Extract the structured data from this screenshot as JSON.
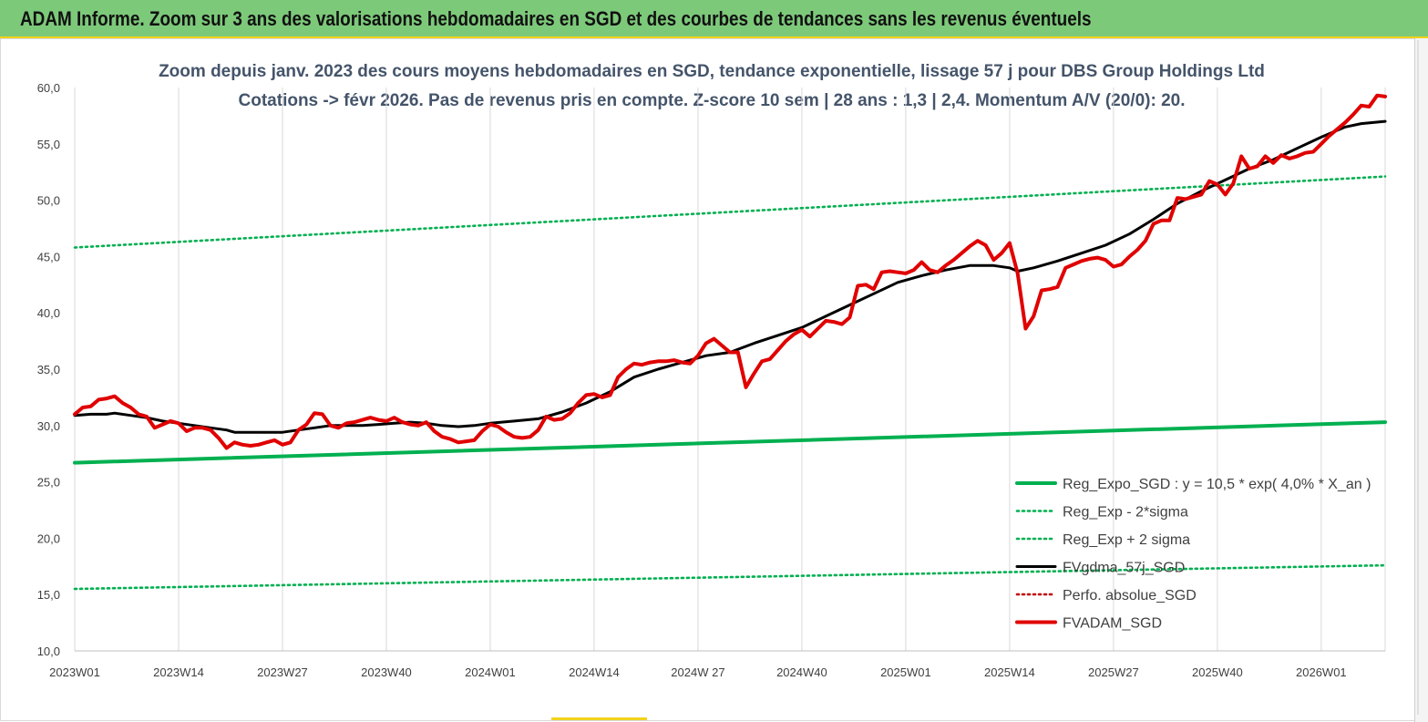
{
  "header": {
    "title": "ADAM Informe. Zoom sur 3 ans des valorisations hebdomadaires en SGD et des courbes de tendances sans les revenus éventuels",
    "background": "#7dc97a",
    "accent": "#f2d21b"
  },
  "chart_data": {
    "type": "line",
    "title": "Zoom depuis janv. 2023 des cours moyens hebdomadaires en SGD, tendance exponentielle, lissage 57 j pour DBS Group Holdings Ltd",
    "subtitle": "Cotations -> févr 2026.  Pas de revenus pris en compte. Z-score 10 sem  | 28 ans : 1,3  | 2,4. Momentum A/V (20/0): 20.",
    "xlabel": "",
    "ylabel": "",
    "ylim": [
      10,
      60
    ],
    "xlim": [
      0,
      164
    ],
    "y_ticks": [
      "10,0",
      "15,0",
      "20,0",
      "25,0",
      "30,0",
      "35,0",
      "40,0",
      "45,0",
      "50,0",
      "55,0",
      "60,0"
    ],
    "x_ticks": [
      {
        "label": "2023W01",
        "x": 0
      },
      {
        "label": "2023W14",
        "x": 13
      },
      {
        "label": "2023W27",
        "x": 26
      },
      {
        "label": "2023W40",
        "x": 39
      },
      {
        "label": "2024W01",
        "x": 52
      },
      {
        "label": "2024W14",
        "x": 65
      },
      {
        "label": "2024W 27",
        "x": 78
      },
      {
        "label": "2024W40",
        "x": 91
      },
      {
        "label": "2025W01",
        "x": 104
      },
      {
        "label": "2025W14",
        "x": 117
      },
      {
        "label": "2025W27",
        "x": 130
      },
      {
        "label": "2025W40",
        "x": 143
      },
      {
        "label": "2026W01",
        "x": 156
      }
    ],
    "grid": "vertical",
    "legend_position": "bottom-right",
    "series": [
      {
        "name": "Reg_Expo_SGD : y = 10,5 * exp( 4,0% *  X_an )",
        "color": "#00b050",
        "style": "solid-thick",
        "points": [
          [
            0,
            26.7
          ],
          [
            164,
            30.3
          ]
        ]
      },
      {
        "name": "Reg_Exp - 2*sigma",
        "color": "#00b050",
        "style": "dotted",
        "points": [
          [
            0,
            15.5
          ],
          [
            164,
            17.6
          ]
        ]
      },
      {
        "name": "Reg_Exp + 2 sigma",
        "color": "#00b050",
        "style": "dotted",
        "points": [
          [
            0,
            45.8
          ],
          [
            164,
            52.1
          ]
        ]
      },
      {
        "name": "FVgdma_57j_SGD",
        "color": "#000000",
        "style": "solid",
        "points": [
          [
            0,
            30.9
          ],
          [
            2,
            31.0
          ],
          [
            4,
            31.0
          ],
          [
            5,
            31.1
          ],
          [
            7,
            30.9
          ],
          [
            9,
            30.7
          ],
          [
            11,
            30.4
          ],
          [
            13,
            30.2
          ],
          [
            15,
            30.0
          ],
          [
            17,
            29.8
          ],
          [
            19,
            29.6
          ],
          [
            20,
            29.4
          ],
          [
            22,
            29.4
          ],
          [
            24,
            29.4
          ],
          [
            26,
            29.4
          ],
          [
            28,
            29.6
          ],
          [
            30,
            29.8
          ],
          [
            32,
            30.0
          ],
          [
            34,
            30.0
          ],
          [
            36,
            30.0
          ],
          [
            38,
            30.1
          ],
          [
            40,
            30.2
          ],
          [
            42,
            30.3
          ],
          [
            44,
            30.2
          ],
          [
            46,
            30.0
          ],
          [
            48,
            29.9
          ],
          [
            50,
            30.0
          ],
          [
            52,
            30.2
          ],
          [
            55,
            30.4
          ],
          [
            58,
            30.6
          ],
          [
            61,
            31.2
          ],
          [
            64,
            32.0
          ],
          [
            67,
            33.0
          ],
          [
            70,
            34.3
          ],
          [
            73,
            35.0
          ],
          [
            76,
            35.6
          ],
          [
            79,
            36.2
          ],
          [
            82,
            36.5
          ],
          [
            85,
            37.3
          ],
          [
            88,
            38.0
          ],
          [
            91,
            38.7
          ],
          [
            94,
            39.7
          ],
          [
            97,
            40.7
          ],
          [
            100,
            41.7
          ],
          [
            103,
            42.7
          ],
          [
            106,
            43.3
          ],
          [
            109,
            43.8
          ],
          [
            112,
            44.2
          ],
          [
            115,
            44.2
          ],
          [
            117,
            44.0
          ],
          [
            118,
            43.7
          ],
          [
            120,
            44.0
          ],
          [
            123,
            44.6
          ],
          [
            126,
            45.3
          ],
          [
            129,
            46.0
          ],
          [
            132,
            47.0
          ],
          [
            135,
            48.3
          ],
          [
            138,
            49.7
          ],
          [
            141,
            50.8
          ],
          [
            144,
            51.8
          ],
          [
            147,
            52.8
          ],
          [
            150,
            53.6
          ],
          [
            153,
            54.6
          ],
          [
            156,
            55.6
          ],
          [
            159,
            56.5
          ],
          [
            161,
            56.8
          ],
          [
            164,
            57.0
          ]
        ]
      },
      {
        "name": "Perfo. absolue_SGD",
        "color": "#c00000",
        "style": "dotted",
        "points": []
      },
      {
        "name": "FVADAM_SGD",
        "color": "#e00000",
        "style": "solid-thick",
        "points": [
          [
            0,
            31.0
          ],
          [
            1,
            31.6
          ],
          [
            2,
            31.7
          ],
          [
            3,
            32.3
          ],
          [
            4,
            32.4
          ],
          [
            5,
            32.6
          ],
          [
            6,
            32.0
          ],
          [
            7,
            31.6
          ],
          [
            8,
            31.0
          ],
          [
            9,
            30.8
          ],
          [
            10,
            29.8
          ],
          [
            11,
            30.1
          ],
          [
            12,
            30.4
          ],
          [
            13,
            30.2
          ],
          [
            14,
            29.5
          ],
          [
            15,
            29.8
          ],
          [
            16,
            29.8
          ],
          [
            17,
            29.6
          ],
          [
            18,
            28.9
          ],
          [
            19,
            28.0
          ],
          [
            20,
            28.5
          ],
          [
            21,
            28.3
          ],
          [
            22,
            28.2
          ],
          [
            23,
            28.3
          ],
          [
            24,
            28.5
          ],
          [
            25,
            28.7
          ],
          [
            26,
            28.3
          ],
          [
            27,
            28.5
          ],
          [
            28,
            29.6
          ],
          [
            29,
            30.1
          ],
          [
            30,
            31.1
          ],
          [
            31,
            31.0
          ],
          [
            32,
            30.0
          ],
          [
            33,
            29.8
          ],
          [
            34,
            30.2
          ],
          [
            35,
            30.3
          ],
          [
            36,
            30.5
          ],
          [
            37,
            30.7
          ],
          [
            38,
            30.5
          ],
          [
            39,
            30.4
          ],
          [
            40,
            30.7
          ],
          [
            41,
            30.3
          ],
          [
            42,
            30.1
          ],
          [
            43,
            30.0
          ],
          [
            44,
            30.3
          ],
          [
            45,
            29.5
          ],
          [
            46,
            29.0
          ],
          [
            47,
            28.8
          ],
          [
            48,
            28.5
          ],
          [
            49,
            28.6
          ],
          [
            50,
            28.7
          ],
          [
            51,
            29.5
          ],
          [
            52,
            30.1
          ],
          [
            53,
            29.9
          ],
          [
            54,
            29.4
          ],
          [
            55,
            29.0
          ],
          [
            56,
            28.9
          ],
          [
            57,
            29.0
          ],
          [
            58,
            29.6
          ],
          [
            59,
            30.8
          ],
          [
            60,
            30.5
          ],
          [
            61,
            30.6
          ],
          [
            62,
            31.1
          ],
          [
            63,
            32.0
          ],
          [
            64,
            32.7
          ],
          [
            65,
            32.8
          ],
          [
            66,
            32.5
          ],
          [
            67,
            32.7
          ],
          [
            68,
            34.3
          ],
          [
            69,
            35.0
          ],
          [
            70,
            35.5
          ],
          [
            71,
            35.4
          ],
          [
            72,
            35.6
          ],
          [
            73,
            35.7
          ],
          [
            74,
            35.7
          ],
          [
            75,
            35.8
          ],
          [
            76,
            35.6
          ],
          [
            77,
            35.5
          ],
          [
            78,
            36.2
          ],
          [
            79,
            37.3
          ],
          [
            80,
            37.7
          ],
          [
            81,
            37.1
          ],
          [
            82,
            36.5
          ],
          [
            83,
            36.5
          ],
          [
            84,
            33.4
          ],
          [
            85,
            34.6
          ],
          [
            86,
            35.7
          ],
          [
            87,
            35.9
          ],
          [
            88,
            36.7
          ],
          [
            89,
            37.5
          ],
          [
            90,
            38.1
          ],
          [
            91,
            38.5
          ],
          [
            92,
            37.9
          ],
          [
            93,
            38.6
          ],
          [
            94,
            39.3
          ],
          [
            95,
            39.2
          ],
          [
            96,
            39.0
          ],
          [
            97,
            39.6
          ],
          [
            98,
            42.4
          ],
          [
            99,
            42.5
          ],
          [
            100,
            42.1
          ],
          [
            101,
            43.6
          ],
          [
            102,
            43.7
          ],
          [
            103,
            43.6
          ],
          [
            104,
            43.5
          ],
          [
            105,
            43.8
          ],
          [
            106,
            44.5
          ],
          [
            107,
            43.8
          ],
          [
            108,
            43.6
          ],
          [
            109,
            44.2
          ],
          [
            110,
            44.7
          ],
          [
            111,
            45.3
          ],
          [
            112,
            45.9
          ],
          [
            113,
            46.4
          ],
          [
            114,
            46.0
          ],
          [
            115,
            44.7
          ],
          [
            116,
            45.3
          ],
          [
            117,
            46.2
          ],
          [
            118,
            43.5
          ],
          [
            119,
            38.6
          ],
          [
            120,
            39.7
          ],
          [
            121,
            42.0
          ],
          [
            122,
            42.1
          ],
          [
            123,
            42.3
          ],
          [
            124,
            44.0
          ],
          [
            125,
            44.3
          ],
          [
            126,
            44.6
          ],
          [
            127,
            44.8
          ],
          [
            128,
            44.9
          ],
          [
            129,
            44.7
          ],
          [
            130,
            44.1
          ],
          [
            131,
            44.3
          ],
          [
            132,
            45.0
          ],
          [
            133,
            45.6
          ],
          [
            134,
            46.4
          ],
          [
            135,
            47.9
          ],
          [
            136,
            48.2
          ],
          [
            137,
            48.2
          ],
          [
            138,
            50.2
          ],
          [
            139,
            50.1
          ],
          [
            140,
            50.3
          ],
          [
            141,
            50.5
          ],
          [
            142,
            51.7
          ],
          [
            143,
            51.4
          ],
          [
            144,
            50.5
          ],
          [
            145,
            51.5
          ],
          [
            146,
            53.9
          ],
          [
            147,
            52.8
          ],
          [
            148,
            53.0
          ],
          [
            149,
            53.9
          ],
          [
            150,
            53.3
          ],
          [
            151,
            54.0
          ],
          [
            152,
            53.7
          ],
          [
            153,
            53.9
          ],
          [
            154,
            54.2
          ],
          [
            155,
            54.3
          ],
          [
            156,
            55.0
          ],
          [
            157,
            55.7
          ],
          [
            158,
            56.3
          ],
          [
            159,
            56.9
          ],
          [
            160,
            57.6
          ],
          [
            161,
            58.4
          ],
          [
            162,
            58.3
          ],
          [
            163,
            59.3
          ],
          [
            164,
            59.2
          ]
        ]
      }
    ]
  }
}
